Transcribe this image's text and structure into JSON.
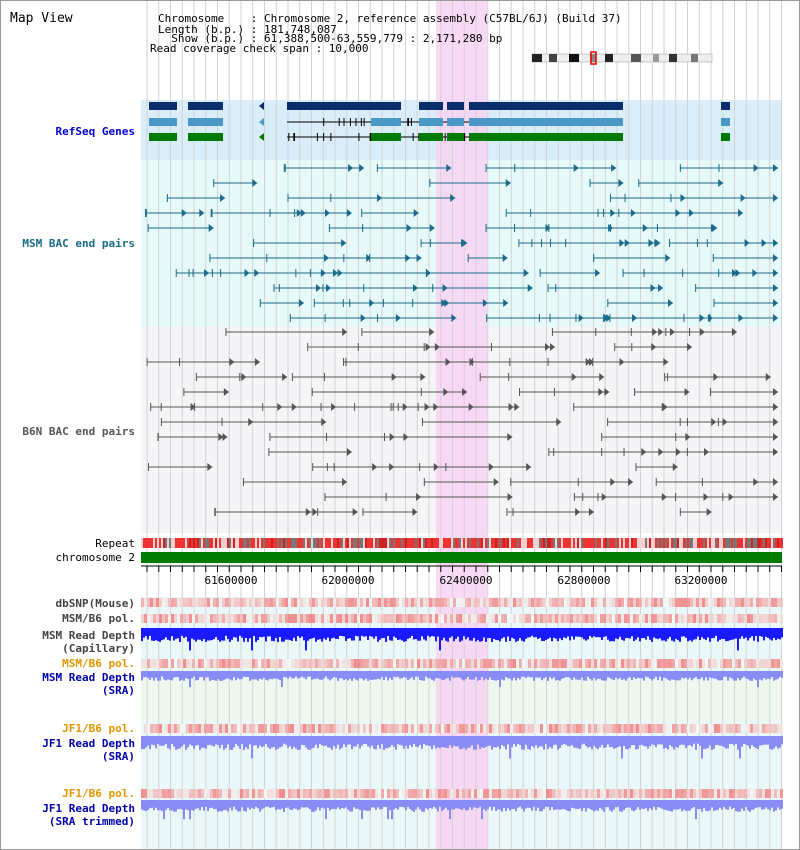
{
  "title": "Map View",
  "info": {
    "chromosome_label": "Chromosome    : Chromosome 2, reference assembly (C57BL/6J) (Build 37)",
    "length_label": "Length (b.p.) : 181,748,087",
    "show_label": "  Show (b.p.) : 61,388,500-63,559,779 : 2,171,280 bp",
    "coverage_label": "Read coverage check span : 10,000"
  },
  "tracks": {
    "refseq": "RefSeq Genes",
    "msm_bac": "MSM BAC end pairs",
    "b6n_bac": "B6N BAC end pairs",
    "repeat": "Repeat",
    "chromosome": "chromosome 2",
    "dbsnp": "dbSNP(Mouse)",
    "msm_b6_pol": "MSM/B6 pol.",
    "msm_read_depth_line1": "MSM Read Depth",
    "msm_read_depth_line2": "(Capillary)",
    "msm_b6_pol_sra": "MSM/B6 pol.",
    "msm_sra_line1": "MSM Read Depth",
    "msm_sra_line2": "(SRA)",
    "jf1_b6_pol": "JF1/B6 pol.",
    "jf1_sra_line1": "JF1 Read Depth",
    "jf1_sra_line2": "(SRA)",
    "jf1_b6_pol_trim": "JF1/B6 pol.",
    "jf1_trim_line1": "JF1 Read Depth",
    "jf1_trim_line2": "(SRA trimmed)"
  },
  "axis": {
    "ticks": [
      "61600000",
      "62000000",
      "62400000",
      "62800000",
      "63200000"
    ]
  },
  "colors": {
    "refseq_bg": "#d9eefa",
    "msm_bg": "#e6fafa",
    "b6n_bg": "#f5f5f8",
    "highlight": "#f8d2f3",
    "gene_dark": "#0a2d6b",
    "gene_mid": "#4a98c5",
    "gene_green": "#007a00",
    "msm_pair": "#1b6a8a",
    "b6n_pair": "#555555",
    "depth_blue": "#1a1aff",
    "depth_light": "#8a8cf5"
  }
}
